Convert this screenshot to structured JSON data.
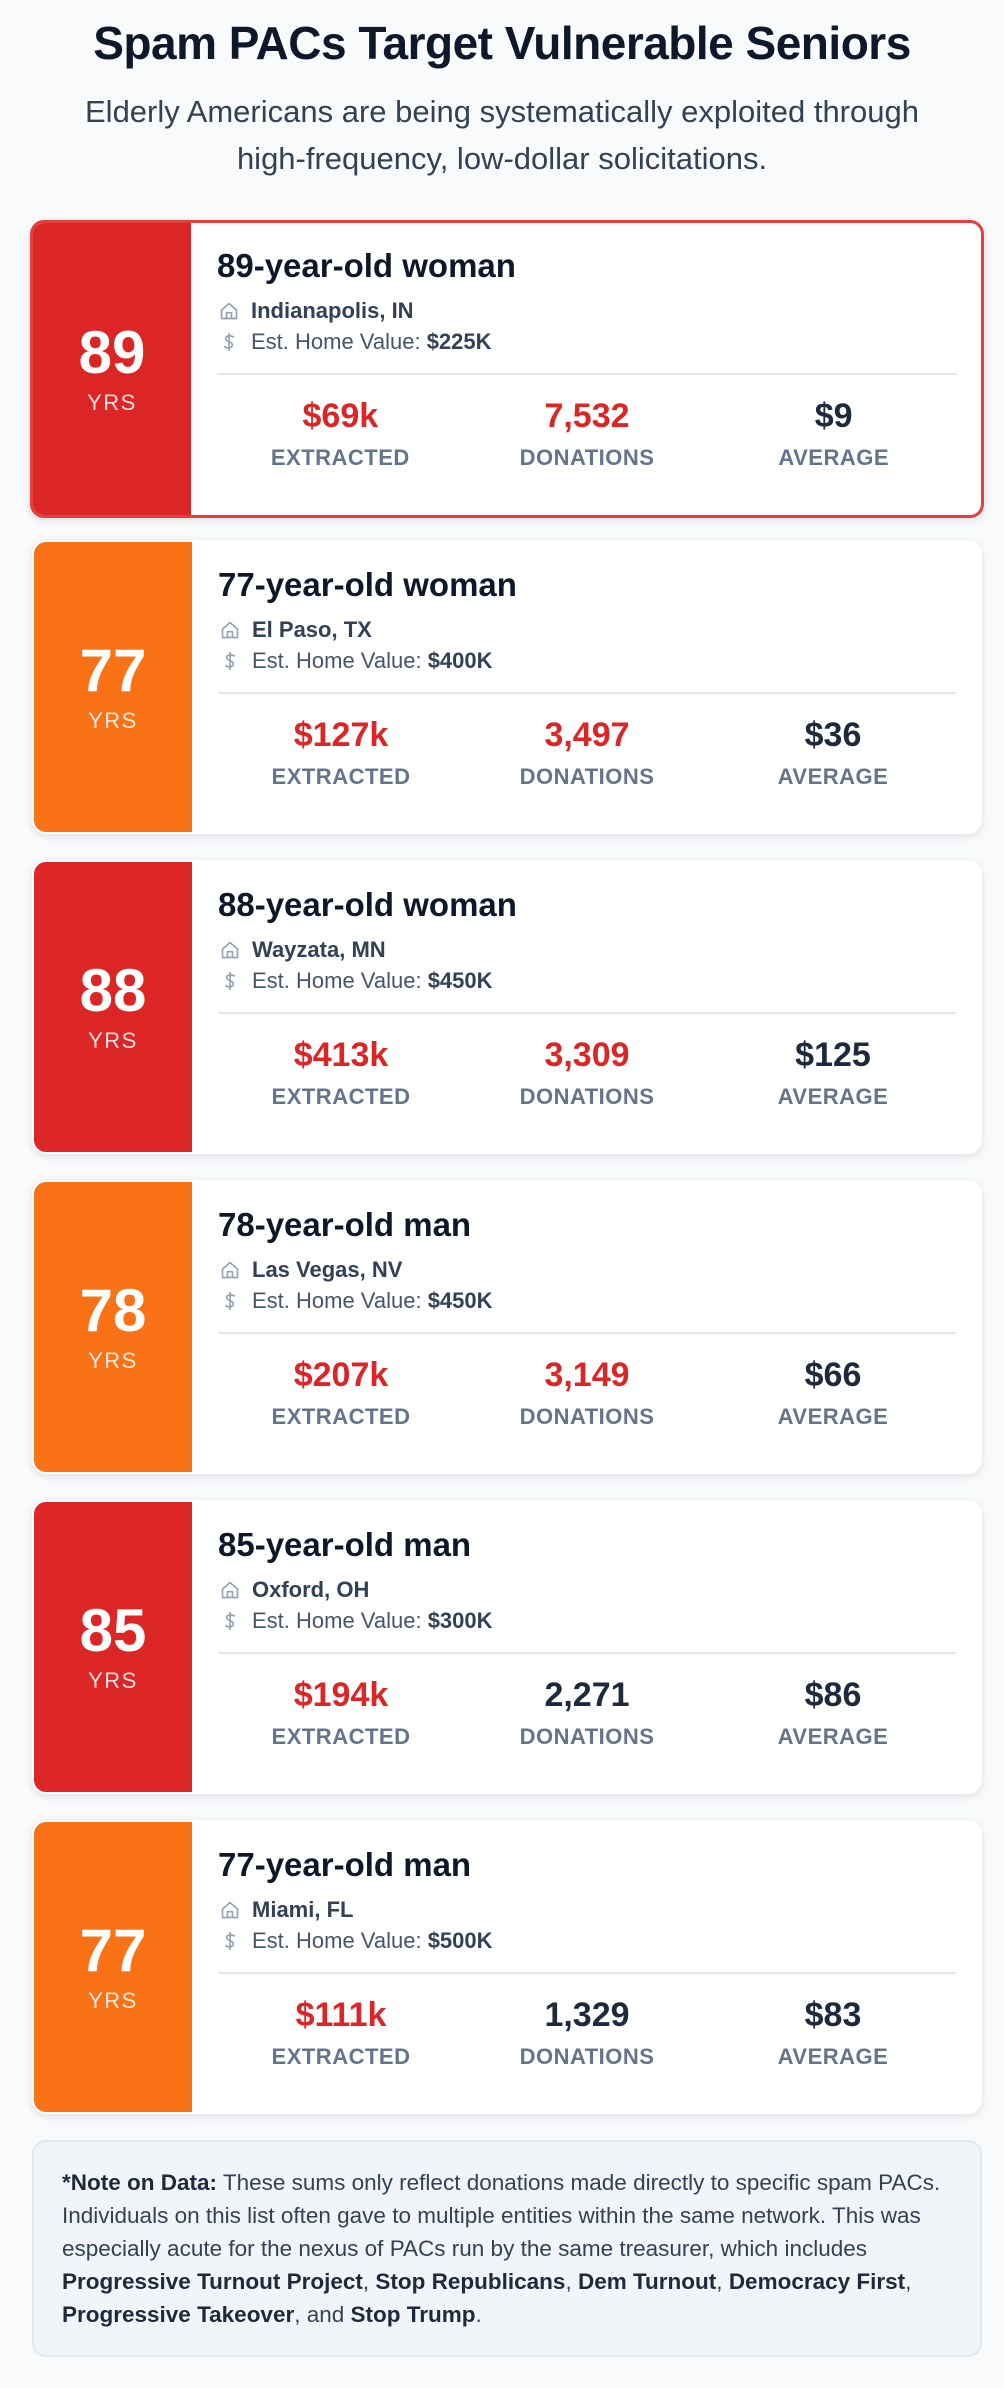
{
  "header": {
    "title": "Spam PACs Target Vulnerable Seniors",
    "subtitle": "Elderly Americans are being systematically exploited through high-frequency, low-dollar solicitations."
  },
  "colors": {
    "red_block": "#dc2626",
    "orange_block": "#f97316",
    "highlight_border": "#e53e3e",
    "stat_red": "#dc2626",
    "stat_dark": "#1e293b"
  },
  "labels": {
    "age_unit": "YRS",
    "home_value_prefix": "Est. Home Value:",
    "extracted": "EXTRACTED",
    "donations": "DONATIONS",
    "average": "AVERAGE"
  },
  "cards": [
    {
      "age": "89",
      "color": "red",
      "highlight": true,
      "person": "89-year-old woman",
      "location": "Indianapolis, IN",
      "home_value": "$225K",
      "extracted": "$69k",
      "donations": "7,532",
      "donations_red": true,
      "average": "$9"
    },
    {
      "age": "77",
      "color": "orange",
      "highlight": false,
      "person": "77-year-old woman",
      "location": "El Paso, TX",
      "home_value": "$400K",
      "extracted": "$127k",
      "donations": "3,497",
      "donations_red": true,
      "average": "$36"
    },
    {
      "age": "88",
      "color": "red",
      "highlight": false,
      "person": "88-year-old woman",
      "location": "Wayzata, MN",
      "home_value": "$450K",
      "extracted": "$413k",
      "donations": "3,309",
      "donations_red": true,
      "average": "$125"
    },
    {
      "age": "78",
      "color": "orange",
      "highlight": false,
      "person": "78-year-old man",
      "location": "Las Vegas, NV",
      "home_value": "$450K",
      "extracted": "$207k",
      "donations": "3,149",
      "donations_red": true,
      "average": "$66"
    },
    {
      "age": "85",
      "color": "red",
      "highlight": false,
      "person": "85-year-old man",
      "location": "Oxford, OH",
      "home_value": "$300K",
      "extracted": "$194k",
      "donations": "2,271",
      "donations_red": false,
      "average": "$86"
    },
    {
      "age": "77",
      "color": "orange",
      "highlight": false,
      "person": "77-year-old man",
      "location": "Miami, FL",
      "home_value": "$500K",
      "extracted": "$111k",
      "donations": "1,329",
      "donations_red": false,
      "average": "$83"
    }
  ],
  "note": {
    "lead": "*Note on Data:",
    "text1": " These sums only reflect donations made directly to specific spam PACs. Individuals on this list often gave to multiple entities within the same network. This was especially acute for the nexus of PACs run by the same treasurer, which includes ",
    "pac1": "Progressive Turnout Project",
    "sep1": ", ",
    "pac2": "Stop Republicans",
    "sep2": ", ",
    "pac3": "Dem Turnout",
    "sep3": ", ",
    "pac4": "Democracy First",
    "sep4": ", ",
    "pac5": "Progressive Takeover",
    "sep5": ", and ",
    "pac6": "Stop Trump",
    "end": "."
  }
}
